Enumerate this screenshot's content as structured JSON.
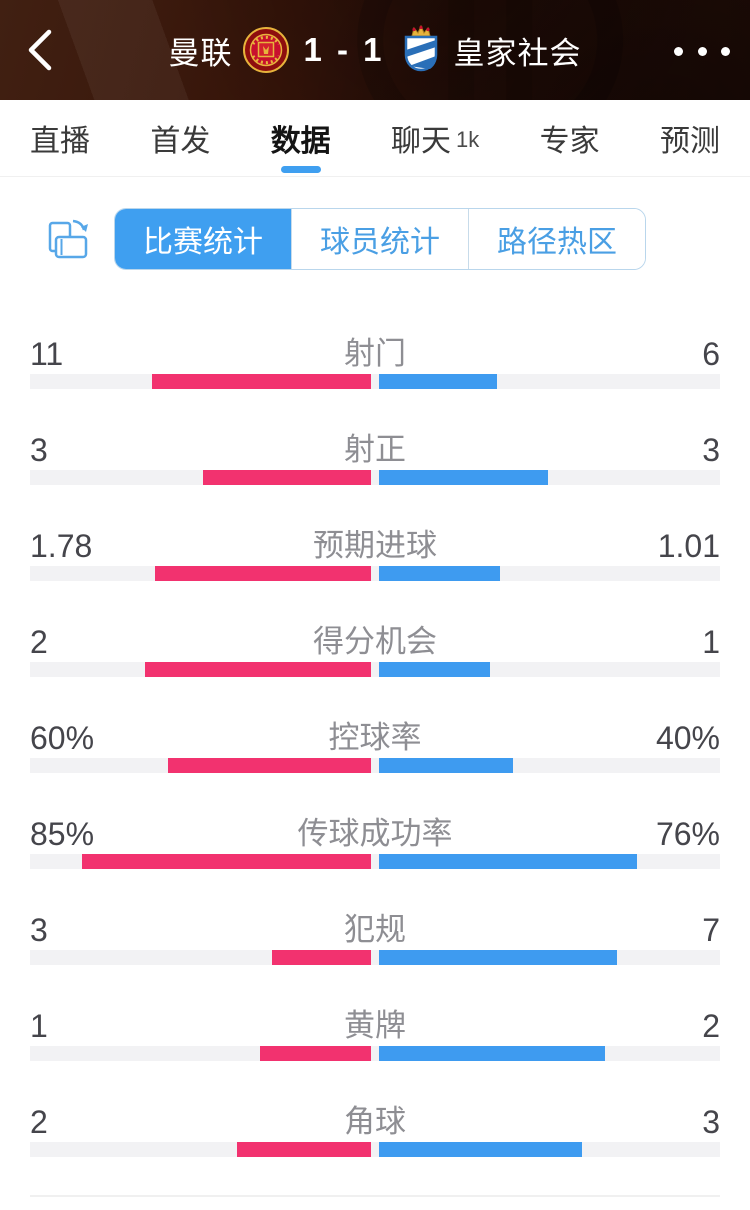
{
  "header": {
    "home_team": "曼联",
    "away_team": "皇家社会",
    "score": "1 - 1"
  },
  "tabs": [
    {
      "label": "直播",
      "selected": false
    },
    {
      "label": "首发",
      "selected": false
    },
    {
      "label": "数据",
      "selected": true
    },
    {
      "label": "聊天",
      "badge": "1k",
      "selected": false
    },
    {
      "label": "专家",
      "selected": false
    },
    {
      "label": "预测",
      "selected": false
    }
  ],
  "stat_tabs": [
    {
      "label": "比赛统计",
      "selected": true
    },
    {
      "label": "球员统计",
      "selected": false
    },
    {
      "label": "路径热区",
      "selected": false
    }
  ],
  "stats": [
    {
      "label": "射门",
      "home": "11",
      "away": "6"
    },
    {
      "label": "射正",
      "home": "3",
      "away": "3"
    },
    {
      "label": "预期进球",
      "home": "1.78",
      "away": "1.01"
    },
    {
      "label": "得分机会",
      "home": "2",
      "away": "1"
    },
    {
      "label": "控球率",
      "home": "60%",
      "away": "40%"
    },
    {
      "label": "传球成功率",
      "home": "85%",
      "away": "76%"
    },
    {
      "label": "犯规",
      "home": "3",
      "away": "7"
    },
    {
      "label": "黄牌",
      "home": "1",
      "away": "2"
    },
    {
      "label": "角球",
      "home": "2",
      "away": "3"
    }
  ],
  "colors": {
    "home_bar": "#F2326F",
    "away_bar": "#3E9BF0",
    "accent_blue": "#3F9FF0",
    "bar_track": "#F2F2F4"
  }
}
